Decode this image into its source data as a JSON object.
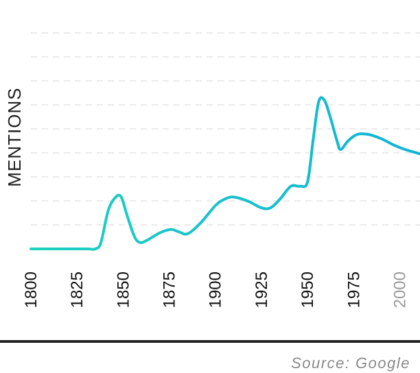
{
  "chart_data": {
    "type": "line",
    "title": "",
    "xlabel": "",
    "ylabel": "MENTIONS",
    "xlim": [
      1800,
      2011
    ],
    "ylim": [
      0,
      10
    ],
    "grid": true,
    "x_ticks": [
      "1800",
      "1825",
      "1850",
      "1875",
      "1900",
      "1925",
      "1950",
      "1975",
      "2000"
    ],
    "muted_tick": "2000",
    "series": [
      {
        "color_start": "#1fd1c0",
        "color_end": "#10b3d6",
        "points": [
          [
            1800,
            0.0
          ],
          [
            1815,
            0.0
          ],
          [
            1830,
            0.0
          ],
          [
            1835,
            0.0
          ],
          [
            1838,
            0.3
          ],
          [
            1842,
            1.8
          ],
          [
            1846,
            2.4
          ],
          [
            1849,
            2.4
          ],
          [
            1852,
            1.6
          ],
          [
            1856,
            0.6
          ],
          [
            1859,
            0.3
          ],
          [
            1863,
            0.4
          ],
          [
            1870,
            0.75
          ],
          [
            1876,
            0.9
          ],
          [
            1880,
            0.8
          ],
          [
            1885,
            0.7
          ],
          [
            1892,
            1.2
          ],
          [
            1900,
            2.0
          ],
          [
            1905,
            2.3
          ],
          [
            1910,
            2.4
          ],
          [
            1918,
            2.2
          ],
          [
            1925,
            1.9
          ],
          [
            1930,
            1.9
          ],
          [
            1935,
            2.3
          ],
          [
            1941,
            2.9
          ],
          [
            1946,
            2.9
          ],
          [
            1950,
            3.1
          ],
          [
            1953,
            5.0
          ],
          [
            1956,
            6.8
          ],
          [
            1959,
            6.9
          ],
          [
            1962,
            6.2
          ],
          [
            1966,
            5.0
          ],
          [
            1968,
            4.6
          ],
          [
            1972,
            5.0
          ],
          [
            1977,
            5.3
          ],
          [
            1983,
            5.3
          ],
          [
            1990,
            5.1
          ],
          [
            1997,
            4.8
          ],
          [
            2003,
            4.6
          ],
          [
            2011,
            4.4
          ]
        ]
      }
    ]
  },
  "footer": {
    "source": "Source: Google"
  },
  "colors": {
    "grid": "#e3e3e3",
    "tick": "#111111",
    "tick_muted": "#9a9a9a",
    "baseline": "#222222",
    "source": "#8a8a8a"
  }
}
